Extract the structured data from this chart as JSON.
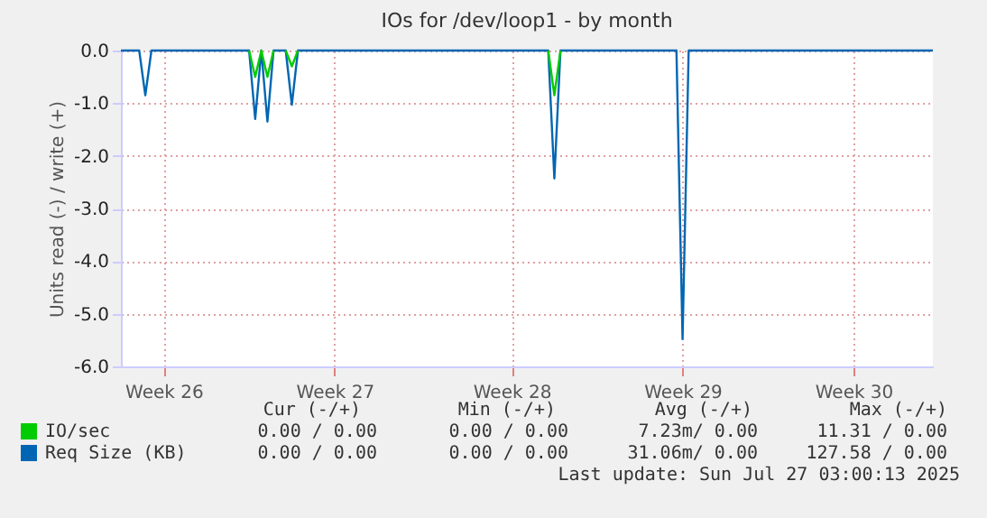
{
  "chart_data": {
    "type": "line",
    "title": "IOs for /dev/loop1 - by month",
    "ylabel": "Units read (-) / write (+)",
    "categories": [
      null,
      null,
      null,
      null,
      null,
      null,
      null,
      "Week 26",
      null,
      null,
      null,
      null,
      null,
      null,
      null,
      null,
      null,
      null,
      null,
      null,
      null,
      null,
      null,
      null,
      null,
      null,
      null,
      null,
      null,
      null,
      null,
      null,
      null,
      null,
      null,
      "Week 27",
      null,
      null,
      null,
      null,
      null,
      null,
      null,
      null,
      null,
      null,
      null,
      null,
      null,
      null,
      null,
      null,
      null,
      null,
      null,
      null,
      null,
      null,
      null,
      null,
      null,
      null,
      null,
      null,
      "Week 28",
      null,
      null,
      null,
      null,
      null,
      null,
      null,
      null,
      null,
      null,
      null,
      null,
      null,
      null,
      null,
      null,
      null,
      null,
      null,
      null,
      null,
      null,
      null,
      null,
      null,
      null,
      null,
      "Week 29",
      null,
      null,
      null,
      null,
      null,
      null,
      null,
      null,
      null,
      null,
      null,
      null,
      null,
      null,
      null,
      null,
      null,
      null,
      null,
      null,
      null,
      null,
      null,
      null,
      null,
      null,
      null,
      "Week 30",
      null,
      null,
      null,
      null,
      null,
      null,
      null,
      null,
      null,
      null,
      null,
      null,
      null
    ],
    "ylim": [
      -6,
      0
    ],
    "yticks": [
      {
        "value": -6,
        "label": "-6.0"
      },
      {
        "value": -5,
        "label": "-5.0"
      },
      {
        "value": -4,
        "label": "-4.0"
      },
      {
        "value": -3,
        "label": "-3.0"
      },
      {
        "value": -2,
        "label": "-2.0"
      },
      {
        "value": -1,
        "label": "-1.0"
      },
      {
        "value": 0,
        "label": "0.0"
      }
    ],
    "grid": true,
    "legend": "bottom left",
    "series": [
      {
        "name": "IO/sec",
        "color": "#00cc00",
        "values": [
          null,
          null,
          null,
          null,
          null,
          null,
          null,
          null,
          null,
          null,
          null,
          null,
          null,
          null,
          null,
          null,
          null,
          null,
          null,
          null,
          null,
          0,
          -0.5,
          0,
          -0.5,
          0,
          null,
          0,
          -0.3,
          0,
          null,
          null,
          null,
          null,
          null,
          null,
          null,
          null,
          null,
          null,
          null,
          null,
          null,
          null,
          null,
          null,
          null,
          null,
          null,
          null,
          null,
          null,
          null,
          null,
          null,
          null,
          null,
          null,
          null,
          null,
          null,
          null,
          null,
          null,
          null,
          null,
          null,
          null,
          null,
          null,
          0,
          -0.85,
          0,
          null,
          null,
          null,
          null,
          null,
          null,
          null,
          null,
          null,
          null,
          null,
          null,
          null,
          null,
          null,
          null,
          null,
          null,
          null,
          null,
          null,
          null,
          null,
          null,
          null,
          null,
          null,
          null,
          null,
          null,
          null,
          null,
          null,
          null,
          null,
          null,
          null,
          null,
          null,
          null,
          null,
          null,
          null,
          null,
          null,
          null,
          null,
          null,
          null,
          null,
          null,
          null,
          null,
          null,
          null,
          null,
          null,
          null,
          null,
          null,
          null
        ]
      },
      {
        "name": "Req Size (KB)",
        "color": "#0066b3",
        "values": [
          0,
          0,
          0,
          0,
          -0.85,
          0,
          0,
          0,
          0,
          0,
          0,
          0,
          0,
          0,
          0,
          0,
          0,
          0,
          0,
          0,
          0,
          0,
          -1.3,
          0,
          -1.35,
          0,
          0,
          0,
          -1.03,
          0,
          0,
          0,
          0,
          0,
          0,
          0,
          0,
          0,
          0,
          0,
          0,
          0,
          0,
          0,
          0,
          0,
          0,
          0,
          0,
          0,
          0,
          0,
          0,
          0,
          0,
          0,
          0,
          0,
          0,
          0,
          0,
          0,
          0,
          0,
          0,
          0,
          0,
          0,
          0,
          0,
          0,
          -2.43,
          0,
          0,
          0,
          0,
          0,
          0,
          0,
          0,
          0,
          0,
          0,
          0,
          0,
          0,
          0,
          0,
          0,
          0,
          0,
          0,
          -5.48,
          0,
          0,
          0,
          0,
          0,
          0,
          0,
          0,
          0,
          0,
          0,
          0,
          0,
          0,
          0,
          0,
          0,
          0,
          0,
          0,
          0,
          0,
          0,
          0,
          0,
          0,
          0,
          0,
          0,
          0,
          0,
          0,
          0,
          0,
          0,
          0,
          0,
          0,
          0,
          0,
          0
        ]
      }
    ],
    "annotations": [
      "Cur (-/+)",
      "Min (-/+)",
      "Avg (-/+)",
      "Max (-/+)",
      "0.00 /  0.00",
      "0.00 /  0.00",
      "7.23m/  0.00",
      "11.31 /  0.00",
      "0.00 /  0.00",
      "0.00 /  0.00",
      "31.06m/  0.00",
      "127.58 /  0.00",
      "Last update: Sun Jul 27 03:00:13 2025"
    ]
  }
}
